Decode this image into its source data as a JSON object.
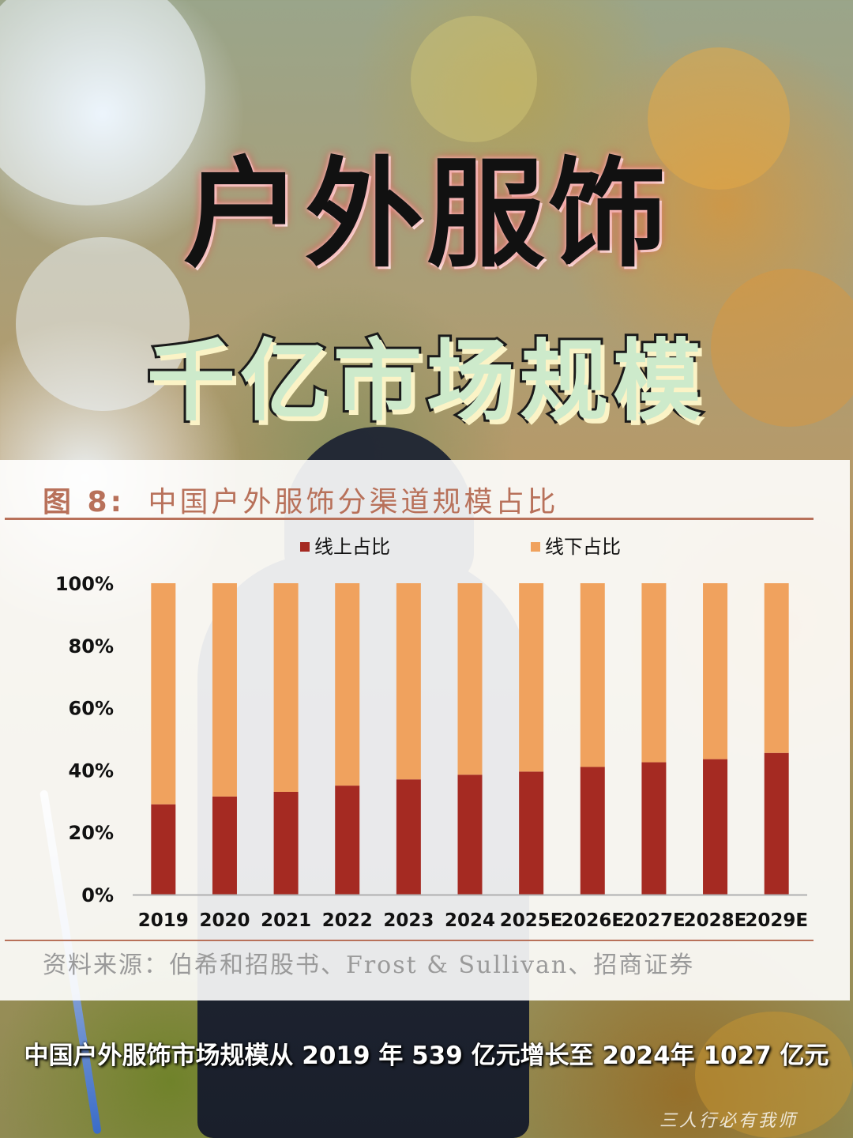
{
  "poster": {
    "title": "户外服饰",
    "subtitle": "千亿市场规模",
    "caption": "中国户外服饰市场规模从 2019 年 539 亿元增长至 2024年 1027 亿元",
    "watermark": "三人行必有我师"
  },
  "figure": {
    "label": "图 8:",
    "title": "中国户外服饰分渠道规模占比",
    "source": "资料来源：伯希和招股书、Frost & Sullivan、招商证券"
  },
  "chart_data": {
    "type": "bar",
    "stacked": true,
    "categories": [
      "2019",
      "2020",
      "2021",
      "2022",
      "2023",
      "2024",
      "2025E",
      "2026E",
      "2027E",
      "2028E",
      "2029E"
    ],
    "series": [
      {
        "name": "线上占比",
        "color": "#a52a22",
        "values": [
          29,
          31.5,
          33,
          35,
          37,
          38.5,
          39.5,
          41,
          42.5,
          43.5,
          45.5
        ]
      },
      {
        "name": "线下占比",
        "color": "#f0a25e",
        "values": [
          71,
          68.5,
          67,
          65,
          63,
          61.5,
          60.5,
          59,
          57.5,
          56.5,
          54.5
        ]
      }
    ],
    "ylim": [
      0,
      100
    ],
    "yticks": [
      "0%",
      "20%",
      "40%",
      "60%",
      "80%",
      "100%"
    ],
    "legend_position": "top",
    "grid": false
  }
}
